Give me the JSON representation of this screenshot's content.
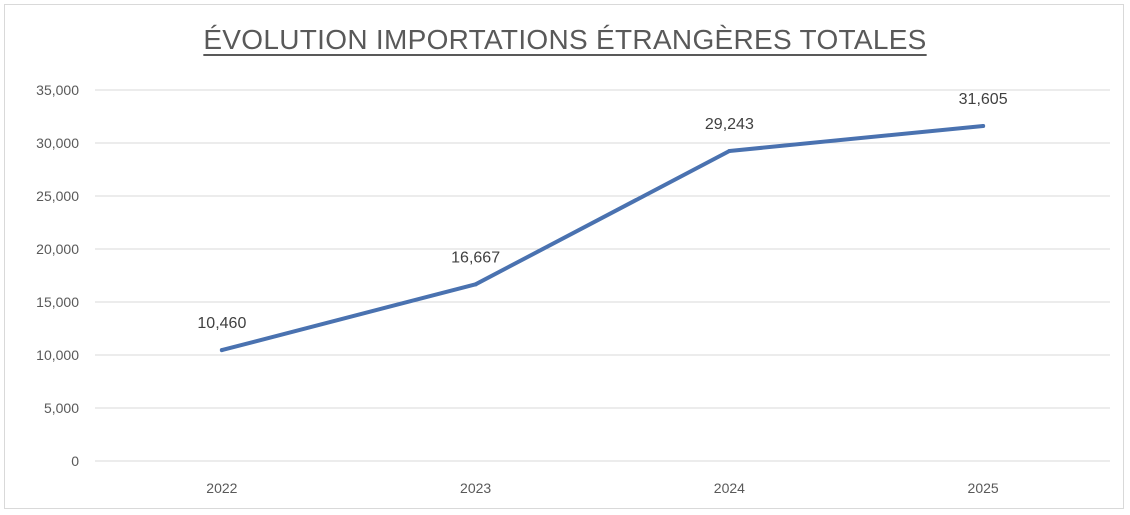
{
  "chart_data": {
    "type": "line",
    "title": "ÉVOLUTION IMPORTATIONS ÉTRANGÈRES TOTALES",
    "categories": [
      "2022",
      "2023",
      "2024",
      "2025"
    ],
    "series": [
      {
        "values": [
          10460,
          16667,
          29243,
          31605
        ],
        "data_labels": [
          "10,460",
          "16,667",
          "29,243",
          "31,605"
        ],
        "color": "#4a72b0"
      }
    ],
    "ylim": [
      0,
      35000
    ],
    "yticks": [
      0,
      5000,
      10000,
      15000,
      20000,
      25000,
      30000,
      35000
    ],
    "ytick_labels": [
      "0",
      "5,000",
      "10,000",
      "15,000",
      "20,000",
      "25,000",
      "30,000",
      "35,000"
    ],
    "grid": true,
    "gridline_color": "#d9d9d9",
    "legend": "none"
  }
}
